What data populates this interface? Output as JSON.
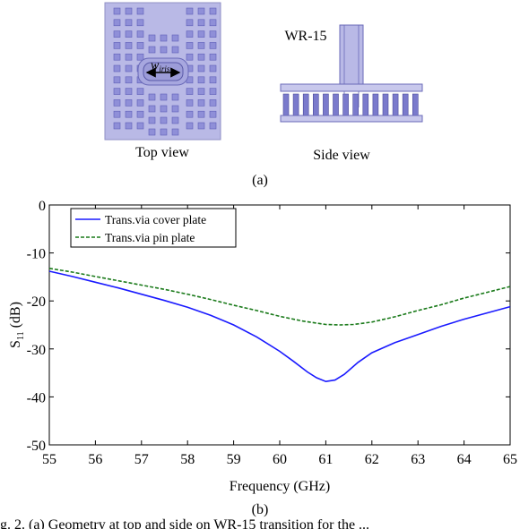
{
  "figure_a": {
    "top_view_label": "Top view",
    "side_view_label": "Side view",
    "waveguide_label": "WR-15",
    "iris_label_main": "w",
    "iris_label_sub": "iris",
    "panel_label": "(a)",
    "colors": {
      "plate_fill": "#b9b9e6",
      "plate_stroke": "#8f8fc4",
      "pin_fill": "#7a7acc",
      "via_fill": "#8f8fd8"
    }
  },
  "figure_b": {
    "panel_label": "(b)"
  },
  "caption": {
    "text": "g. 2. (a) Geometry at top and side on WR-15 transition for the ..."
  },
  "chart_data": {
    "type": "line",
    "xlabel": "Frequency (GHz)",
    "ylabel_main": "S",
    "ylabel_sub": "11",
    "ylabel_unit": " (dB)",
    "xlim": [
      55,
      65
    ],
    "ylim": [
      -50,
      0
    ],
    "xticks": [
      55,
      56,
      57,
      58,
      59,
      60,
      61,
      62,
      63,
      64,
      65
    ],
    "yticks": [
      0,
      -10,
      -20,
      -30,
      -40,
      -50
    ],
    "grid": false,
    "legend_position": "top-left",
    "series": [
      {
        "name": "Trans.via cover plate",
        "color": "#1a1aff",
        "dash": "solid",
        "x": [
          55,
          55.5,
          56,
          56.5,
          57,
          57.5,
          58,
          58.5,
          59,
          59.5,
          60,
          60.3,
          60.6,
          60.8,
          61,
          61.2,
          61.4,
          61.7,
          62,
          62.5,
          63,
          63.5,
          64,
          64.5,
          65
        ],
        "y": [
          -13.8,
          -14.9,
          -16.1,
          -17.3,
          -18.6,
          -19.9,
          -21.3,
          -23.0,
          -25.0,
          -27.5,
          -30.5,
          -32.6,
          -34.8,
          -36.0,
          -36.8,
          -36.5,
          -35.3,
          -32.8,
          -30.8,
          -28.7,
          -27.0,
          -25.3,
          -23.8,
          -22.5,
          -21.2
        ]
      },
      {
        "name": "Trans.via pin plate",
        "color": "#1a7a1a",
        "dash": "dashed",
        "x": [
          55,
          55.5,
          56,
          56.5,
          57,
          57.5,
          58,
          58.5,
          59,
          59.5,
          60,
          60.5,
          61,
          61.3,
          61.6,
          62,
          62.5,
          63,
          63.5,
          64,
          64.5,
          65
        ],
        "y": [
          -13.2,
          -14.0,
          -14.9,
          -15.8,
          -16.7,
          -17.6,
          -18.6,
          -19.7,
          -20.9,
          -22.0,
          -23.2,
          -24.2,
          -24.9,
          -25.0,
          -24.9,
          -24.4,
          -23.3,
          -22.0,
          -20.8,
          -19.4,
          -18.2,
          -17.0
        ]
      }
    ]
  }
}
